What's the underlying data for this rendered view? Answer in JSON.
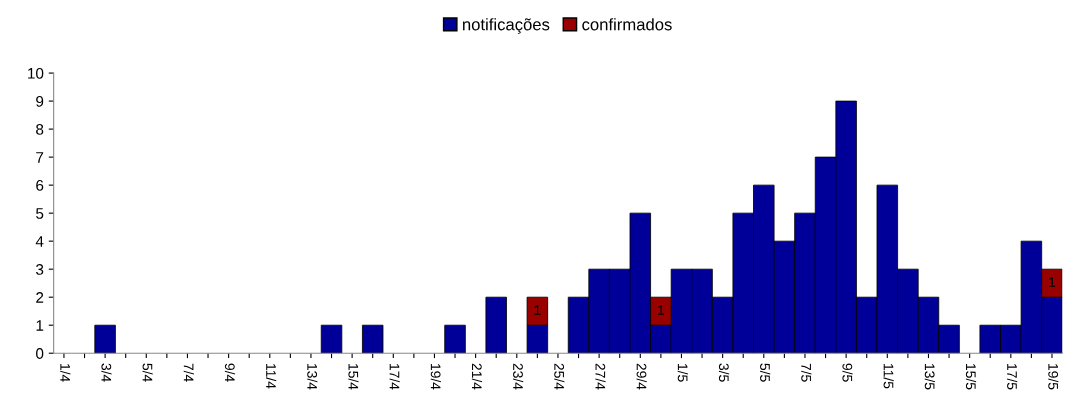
{
  "chart_data": {
    "type": "bar",
    "stacked": true,
    "legend": "top",
    "categories": [
      "1/4",
      null,
      "3/4",
      null,
      "5/4",
      null,
      "7/4",
      null,
      "9/4",
      null,
      "11/4",
      null,
      "13/4",
      null,
      "15/4",
      null,
      "17/4",
      null,
      "19/4",
      null,
      "21/4",
      null,
      "23/4",
      null,
      "25/4",
      null,
      "27/4",
      null,
      "29/4",
      null,
      "1/5",
      null,
      "3/5",
      null,
      "5/5",
      null,
      "7/5",
      null,
      "9/5",
      null,
      "11/5",
      null,
      "13/5",
      null,
      "15/5",
      null,
      "17/5",
      null,
      "19/5"
    ],
    "series": [
      {
        "name": "notificações",
        "color": "#000099",
        "values": [
          0,
          0,
          1,
          0,
          0,
          0,
          0,
          0,
          0,
          0,
          0,
          0,
          0,
          1,
          0,
          1,
          0,
          0,
          0,
          1,
          0,
          2,
          0,
          1,
          0,
          2,
          3,
          3,
          5,
          1,
          3,
          3,
          2,
          5,
          6,
          4,
          5,
          7,
          9,
          2,
          6,
          3,
          2,
          1,
          0,
          1,
          1,
          4,
          2
        ]
      },
      {
        "name": "confirmados",
        "color": "#990000",
        "values": [
          null,
          null,
          null,
          null,
          null,
          null,
          null,
          null,
          null,
          null,
          null,
          null,
          null,
          null,
          null,
          null,
          null,
          null,
          null,
          null,
          null,
          null,
          null,
          1,
          null,
          null,
          null,
          null,
          null,
          1,
          null,
          null,
          null,
          null,
          null,
          null,
          null,
          null,
          null,
          null,
          null,
          null,
          null,
          null,
          null,
          null,
          null,
          null,
          1
        ],
        "value_labels": [
          null,
          null,
          null,
          null,
          null,
          null,
          null,
          null,
          null,
          null,
          null,
          null,
          null,
          null,
          null,
          null,
          null,
          null,
          null,
          null,
          null,
          null,
          null,
          "1",
          null,
          null,
          null,
          null,
          null,
          "1",
          null,
          null,
          null,
          null,
          null,
          null,
          null,
          null,
          null,
          null,
          null,
          null,
          null,
          null,
          null,
          null,
          null,
          null,
          "1"
        ]
      }
    ],
    "ylim": [
      0,
      10
    ],
    "yticks": [
      0,
      1,
      2,
      3,
      4,
      5,
      6,
      7,
      8,
      9,
      10
    ],
    "grid": false
  }
}
